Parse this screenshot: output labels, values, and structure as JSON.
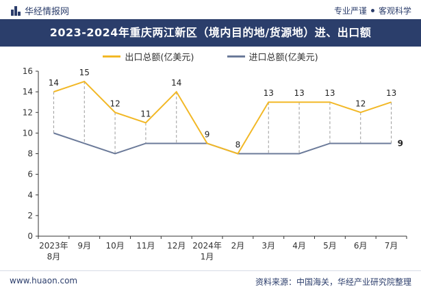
{
  "header": {
    "brand": "华经情报网",
    "tagline_left": "专业严谨",
    "tagline_right": "客观科学"
  },
  "footer": {
    "site": "www.huaon.com",
    "source": "资料来源：中国海关，华经产业研究院整理"
  },
  "colors": {
    "title_bg": "#2b3e6b",
    "export": "#f2b826",
    "import": "#6b7a99"
  },
  "chart_data": {
    "type": "line",
    "title": "2023-2024年重庆两江新区（境内目的地/货源地）进、出口额",
    "categories": [
      "2023年8月",
      "9月",
      "10月",
      "11月",
      "12月",
      "2024年1月",
      "2月",
      "3月",
      "4月",
      "5月",
      "6月",
      "7月"
    ],
    "ylim": [
      0,
      16
    ],
    "yticks": [
      0,
      2,
      4,
      6,
      8,
      10,
      12,
      14,
      16
    ],
    "legend_position": "top-center",
    "grid": false,
    "series": [
      {
        "name": "出口总额(亿美元)",
        "color": "#f2b826",
        "values": [
          14,
          15,
          12,
          11,
          14,
          9,
          8,
          13,
          13,
          13,
          12,
          13
        ],
        "labeled": [
          true,
          true,
          true,
          true,
          true,
          true,
          true,
          true,
          true,
          true,
          true,
          true
        ]
      },
      {
        "name": "进口总额(亿美元)",
        "color": "#6b7a99",
        "values": [
          10,
          9,
          8,
          9,
          9,
          9,
          8,
          8,
          8,
          9,
          9,
          9
        ],
        "labeled": [
          false,
          false,
          false,
          false,
          false,
          false,
          false,
          false,
          false,
          false,
          false,
          true
        ]
      }
    ]
  }
}
